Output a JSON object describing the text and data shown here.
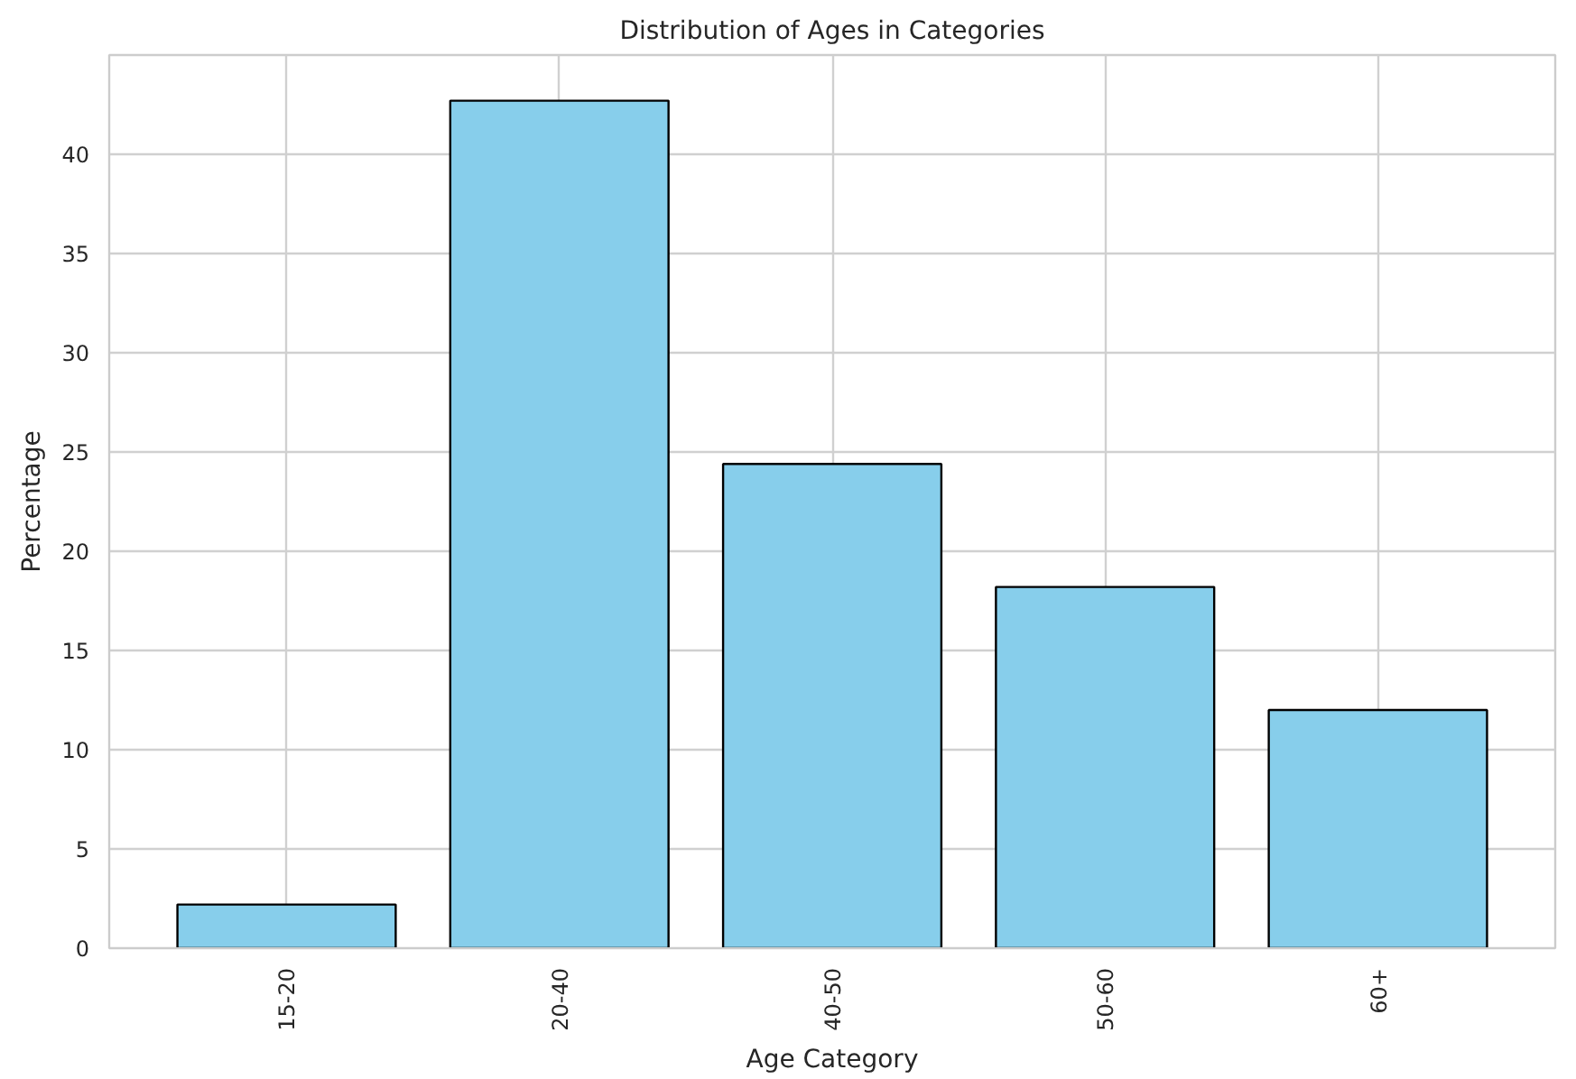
{
  "chart_data": {
    "type": "bar",
    "title": "Distribution of Ages in Categories",
    "xlabel": "Age Category",
    "ylabel": "Percentage",
    "categories": [
      "15-20",
      "20-40",
      "40-50",
      "50-60",
      "60+"
    ],
    "values": [
      2.2,
      42.7,
      24.4,
      18.2,
      12.0
    ],
    "color": "#87ceeb",
    "ylim": [
      0,
      45
    ],
    "yticks": [
      0,
      5,
      10,
      15,
      20,
      25,
      30,
      35,
      40
    ],
    "grid": true
  }
}
